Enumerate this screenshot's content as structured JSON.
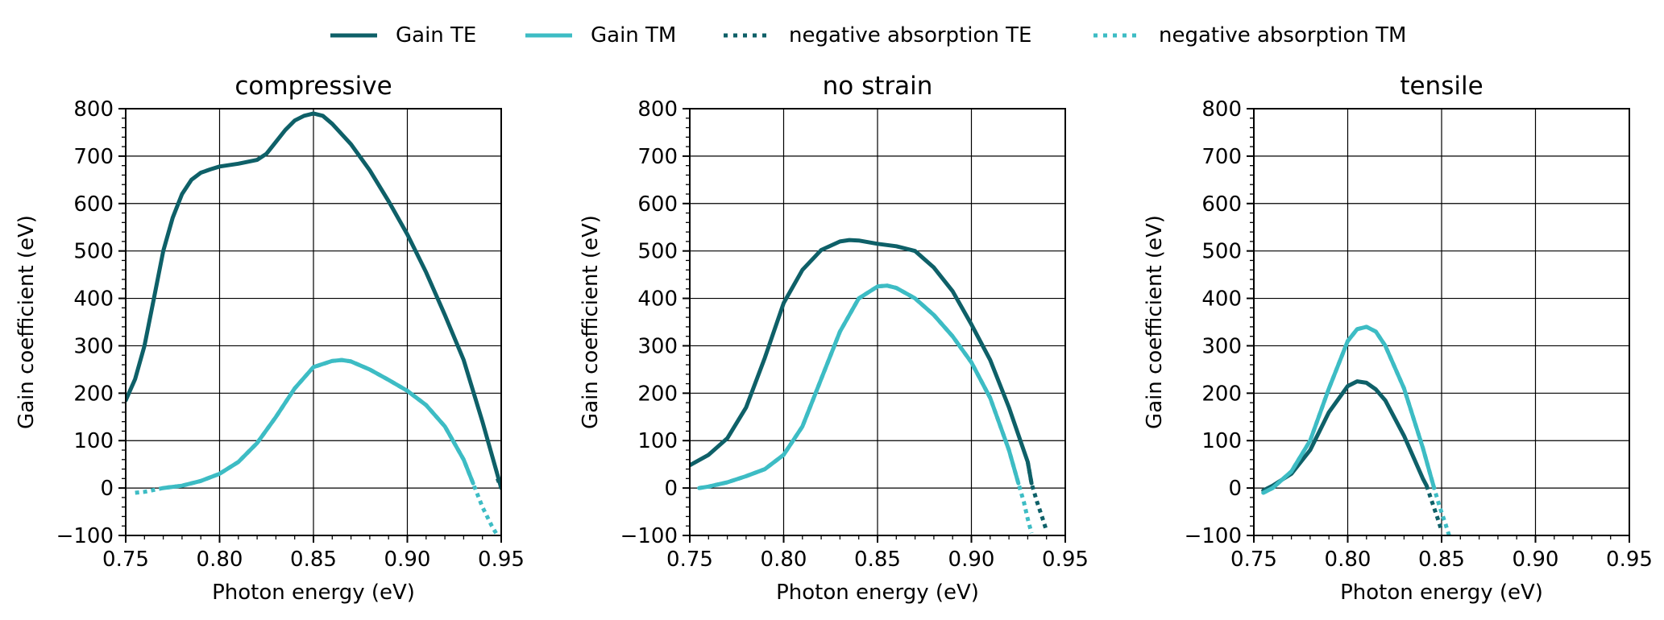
{
  "colors": {
    "te": "#0e6068",
    "tm": "#3dbcc4",
    "axis": "#000000",
    "grid": "#000000"
  },
  "legend": {
    "items": [
      {
        "label": "Gain TE",
        "series": "te",
        "style": "solid"
      },
      {
        "label": "Gain TM",
        "series": "tm",
        "style": "solid"
      },
      {
        "label": "negative absorption TE",
        "series": "te",
        "style": "dotted"
      },
      {
        "label": "negative absorption TM",
        "series": "tm",
        "style": "dotted"
      }
    ]
  },
  "chart_data": [
    {
      "type": "line",
      "title": "compressive",
      "xlabel": "Photon energy (eV)",
      "ylabel": "Gain coefficient (eV)",
      "xlim": [
        0.75,
        0.95
      ],
      "ylim": [
        -100,
        800
      ],
      "xticks": [
        0.75,
        0.8,
        0.85,
        0.9,
        0.95
      ],
      "xtick_labels": [
        "0.75",
        "0.80",
        "0.85",
        "0.90",
        "0.95"
      ],
      "yticks": [
        -100,
        0,
        100,
        200,
        300,
        400,
        500,
        600,
        700,
        800
      ],
      "ytick_labels": [
        "−100",
        "0",
        "100",
        "200",
        "300",
        "400",
        "500",
        "600",
        "700",
        "800"
      ],
      "grid": true,
      "series": [
        {
          "name": "Gain TE",
          "x": [
            0.75,
            0.755,
            0.76,
            0.765,
            0.77,
            0.775,
            0.78,
            0.785,
            0.79,
            0.795,
            0.8,
            0.81,
            0.82,
            0.825,
            0.83,
            0.835,
            0.84,
            0.845,
            0.85,
            0.855,
            0.86,
            0.87,
            0.88,
            0.89,
            0.9,
            0.91,
            0.92,
            0.93,
            0.94,
            0.95
          ],
          "y": [
            185,
            230,
            300,
            400,
            500,
            570,
            620,
            650,
            665,
            672,
            678,
            684,
            692,
            705,
            730,
            755,
            775,
            785,
            790,
            785,
            768,
            725,
            670,
            605,
            535,
            455,
            365,
            270,
            140,
            0
          ]
        },
        {
          "name": "Gain TM",
          "x": [
            0.77,
            0.78,
            0.79,
            0.8,
            0.81,
            0.82,
            0.83,
            0.84,
            0.85,
            0.86,
            0.865,
            0.87,
            0.88,
            0.89,
            0.9,
            0.91,
            0.92,
            0.93,
            0.935
          ],
          "y": [
            0,
            5,
            15,
            30,
            55,
            95,
            150,
            210,
            255,
            268,
            270,
            267,
            250,
            228,
            205,
            175,
            130,
            60,
            10
          ]
        },
        {
          "name": "negative absorption TE",
          "x": [
            0.948,
            0.95
          ],
          "y": [
            20,
            0
          ]
        },
        {
          "name": "negative absorption TM",
          "x": [
            0.755,
            0.76,
            0.77,
            0.78,
            0.79,
            0.8,
            0.81,
            0.82,
            0.83,
            0.84,
            0.85,
            0.86,
            0.865,
            0.87,
            0.88,
            0.89,
            0.9,
            0.91,
            0.92,
            0.93,
            0.935,
            0.94,
            0.945,
            0.948
          ],
          "y": [
            -10,
            -8,
            0,
            5,
            15,
            30,
            55,
            95,
            150,
            210,
            255,
            268,
            270,
            267,
            250,
            228,
            205,
            175,
            130,
            60,
            10,
            -40,
            -80,
            -100
          ]
        }
      ]
    },
    {
      "type": "line",
      "title": "no strain",
      "xlabel": "Photon energy (eV)",
      "ylabel": "Gain coefficient (eV)",
      "xlim": [
        0.75,
        0.95
      ],
      "ylim": [
        -100,
        800
      ],
      "xticks": [
        0.75,
        0.8,
        0.85,
        0.9,
        0.95
      ],
      "xtick_labels": [
        "0.75",
        "0.80",
        "0.85",
        "0.90",
        "0.95"
      ],
      "yticks": [
        -100,
        0,
        100,
        200,
        300,
        400,
        500,
        600,
        700,
        800
      ],
      "ytick_labels": [
        "−100",
        "0",
        "100",
        "200",
        "300",
        "400",
        "500",
        "600",
        "700",
        "800"
      ],
      "grid": true,
      "series": [
        {
          "name": "Gain TE",
          "x": [
            0.75,
            0.76,
            0.77,
            0.78,
            0.79,
            0.8,
            0.81,
            0.82,
            0.83,
            0.835,
            0.84,
            0.85,
            0.86,
            0.87,
            0.88,
            0.89,
            0.9,
            0.91,
            0.92,
            0.93,
            0.932
          ],
          "y": [
            48,
            70,
            105,
            170,
            275,
            390,
            460,
            502,
            520,
            523,
            522,
            515,
            510,
            500,
            465,
            415,
            345,
            270,
            170,
            55,
            10
          ]
        },
        {
          "name": "Gain TM",
          "x": [
            0.755,
            0.76,
            0.77,
            0.78,
            0.79,
            0.8,
            0.81,
            0.82,
            0.83,
            0.84,
            0.85,
            0.855,
            0.86,
            0.87,
            0.88,
            0.89,
            0.9,
            0.91,
            0.92,
            0.925
          ],
          "y": [
            0,
            3,
            12,
            25,
            40,
            70,
            130,
            230,
            330,
            400,
            425,
            427,
            422,
            400,
            365,
            320,
            265,
            190,
            80,
            10
          ]
        },
        {
          "name": "negative absorption TE",
          "x": [
            0.93,
            0.932,
            0.935,
            0.938,
            0.94
          ],
          "y": [
            55,
            10,
            -30,
            -65,
            -90
          ]
        },
        {
          "name": "negative absorption TM",
          "x": [
            0.755,
            0.76,
            0.77,
            0.78,
            0.79,
            0.8,
            0.81,
            0.82,
            0.83,
            0.84,
            0.85,
            0.855,
            0.86,
            0.87,
            0.88,
            0.89,
            0.9,
            0.91,
            0.92,
            0.925,
            0.928,
            0.93,
            0.932
          ],
          "y": [
            0,
            3,
            12,
            25,
            40,
            70,
            130,
            230,
            330,
            400,
            425,
            427,
            422,
            400,
            365,
            320,
            265,
            190,
            80,
            10,
            -30,
            -65,
            -95
          ]
        }
      ]
    },
    {
      "type": "line",
      "title": "tensile",
      "xlabel": "Photon energy (eV)",
      "ylabel": "Gain coefficient (eV)",
      "xlim": [
        0.75,
        0.95
      ],
      "ylim": [
        -100,
        800
      ],
      "xticks": [
        0.75,
        0.8,
        0.85,
        0.9,
        0.95
      ],
      "xtick_labels": [
        "0.75",
        "0.80",
        "0.85",
        "0.90",
        "0.95"
      ],
      "yticks": [
        -100,
        0,
        100,
        200,
        300,
        400,
        500,
        600,
        700,
        800
      ],
      "ytick_labels": [
        "−100",
        "0",
        "100",
        "200",
        "300",
        "400",
        "500",
        "600",
        "700",
        "800"
      ],
      "grid": true,
      "series": [
        {
          "name": "Gain TE",
          "x": [
            0.755,
            0.76,
            0.77,
            0.78,
            0.79,
            0.8,
            0.805,
            0.81,
            0.815,
            0.82,
            0.83,
            0.84,
            0.842
          ],
          "y": [
            -5,
            5,
            30,
            80,
            160,
            215,
            225,
            222,
            208,
            185,
            110,
            20,
            5
          ]
        },
        {
          "name": "Gain TM",
          "x": [
            0.755,
            0.76,
            0.77,
            0.78,
            0.79,
            0.8,
            0.805,
            0.81,
            0.815,
            0.82,
            0.83,
            0.84,
            0.846
          ],
          "y": [
            -10,
            0,
            35,
            100,
            210,
            310,
            335,
            340,
            330,
            300,
            210,
            85,
            0
          ]
        },
        {
          "name": "negative absorption TE",
          "x": [
            0.842,
            0.845,
            0.848,
            0.85
          ],
          "y": [
            5,
            -30,
            -65,
            -90
          ]
        },
        {
          "name": "negative absorption TM",
          "x": [
            0.755,
            0.76,
            0.77,
            0.78,
            0.79,
            0.8,
            0.805,
            0.81,
            0.815,
            0.82,
            0.83,
            0.84,
            0.846,
            0.849,
            0.852,
            0.854
          ],
          "y": [
            -10,
            0,
            35,
            100,
            210,
            310,
            335,
            340,
            330,
            300,
            210,
            85,
            0,
            -40,
            -75,
            -100
          ]
        }
      ]
    }
  ]
}
